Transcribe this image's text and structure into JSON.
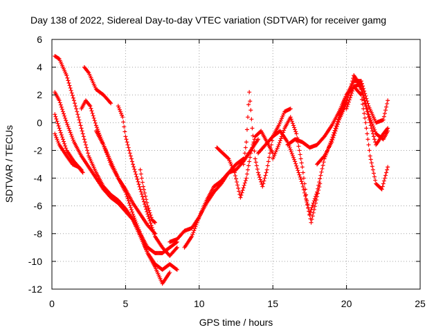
{
  "chart_data": {
    "type": "scatter",
    "title": "Day 138 of 2022, Sidereal Day-to-day VTEC variation (SDTVAR) for receiver gamg",
    "xlabel": "GPS time / hours",
    "ylabel": "SDTVAR / TECUs",
    "xlim": [
      0,
      25
    ],
    "ylim": [
      -12,
      6
    ],
    "xticks": [
      "0",
      "5",
      "10",
      "15",
      "20",
      "25"
    ],
    "yticks": [
      "6",
      "4",
      "2",
      "0",
      "-2",
      "-4",
      "-6",
      "-8",
      "-10",
      "-12"
    ],
    "grid": true,
    "marker": "plus",
    "color": "#ff0000",
    "series": [
      {
        "x": [
          0.2,
          0.5,
          1.0,
          1.5,
          2.0,
          2.5,
          3.0,
          3.5,
          4.0,
          4.5,
          5.0,
          5.5,
          6.0,
          6.5,
          7.0,
          7.5,
          8.0,
          8.5
        ],
        "y": [
          4.8,
          4.6,
          3.4,
          1.6,
          -0.4,
          -2.4,
          -3.6,
          -4.6,
          -5.2,
          -5.6,
          -6.2,
          -7.0,
          -8.0,
          -9.0,
          -9.4,
          -9.4,
          -9.0,
          -8.6
        ]
      },
      {
        "x": [
          0.2,
          0.5,
          1.0,
          1.5,
          2.0,
          2.5,
          3.0,
          3.5,
          4.0,
          4.5,
          5.0,
          5.5,
          6.0,
          6.5,
          7.0,
          7.5,
          8.0
        ],
        "y": [
          2.2,
          1.6,
          0.0,
          -1.4,
          -2.4,
          -3.2,
          -4.0,
          -4.8,
          -5.4,
          -5.8,
          -6.4,
          -7.0,
          -8.2,
          -9.4,
          -10.4,
          -11.6,
          -10.8
        ]
      },
      {
        "x": [
          0.2,
          0.5,
          1.0,
          1.5,
          2.0
        ],
        "y": [
          0.6,
          -0.4,
          -2.0,
          -2.8,
          -3.4
        ]
      },
      {
        "x": [
          0.2,
          0.5,
          1.0,
          1.4,
          1.8,
          2.1
        ],
        "y": [
          -0.8,
          -1.6,
          -2.4,
          -3.0,
          -3.2,
          -3.6
        ]
      },
      {
        "x": [
          2.2,
          2.5,
          3.0,
          3.5,
          4.0
        ],
        "y": [
          4.0,
          3.6,
          2.4,
          2.0,
          1.4
        ]
      },
      {
        "x": [
          2.0,
          2.3,
          2.6,
          3.0,
          3.5,
          4.0,
          4.5,
          5.0,
          5.5,
          6.0,
          6.5,
          7.0
        ],
        "y": [
          1.0,
          1.6,
          1.2,
          -0.2,
          -1.6,
          -2.8,
          -4.0,
          -4.8,
          -5.8,
          -6.6,
          -7.4,
          -8.0
        ]
      },
      {
        "x": [
          3.0,
          3.5,
          4.0,
          4.5,
          5.0,
          5.5,
          6.0,
          6.5,
          7.0,
          7.5,
          8.0,
          8.5
        ],
        "y": [
          -0.6,
          -1.6,
          -3.0,
          -4.0,
          -5.0,
          -6.6,
          -8.0,
          -9.4,
          -10.2,
          -10.6,
          -10.2,
          -10.6
        ]
      },
      {
        "x": [
          4.5,
          4.8,
          5.0,
          5.5,
          6.0,
          6.5,
          7.0,
          7.5,
          8.0,
          8.5
        ],
        "y": [
          1.2,
          0.4,
          -1.0,
          -3.0,
          -4.8,
          -6.6,
          -8.2,
          -9.0,
          -9.6,
          -9.0
        ]
      },
      {
        "x": [
          6.0,
          6.2,
          6.5,
          6.8,
          7.0
        ],
        "y": [
          -3.4,
          -4.6,
          -6.0,
          -7.0,
          -7.2
        ]
      },
      {
        "x": [
          8.0,
          8.5,
          9.0,
          9.5,
          10.0,
          10.5,
          11.0,
          11.5,
          12.0,
          12.5,
          13.0
        ],
        "y": [
          -8.6,
          -8.4,
          -7.8,
          -7.6,
          -6.8,
          -5.8,
          -5.0,
          -4.4,
          -3.6,
          -3.0,
          -2.6
        ]
      },
      {
        "x": [
          9.0,
          9.5,
          10.0,
          10.5,
          11.0,
          11.5,
          12.0,
          12.5,
          13.0,
          13.5,
          14.0
        ],
        "y": [
          -9.0,
          -8.2,
          -6.8,
          -5.6,
          -4.6,
          -4.2,
          -3.6,
          -3.4,
          -2.8,
          -2.0,
          -1.2
        ]
      },
      {
        "x": [
          11.2,
          11.6,
          12.0,
          12.4,
          12.8,
          13.2,
          13.5,
          13.8,
          14.2,
          14.6,
          15.0
        ],
        "y": [
          -1.8,
          -2.2,
          -2.6,
          -3.6,
          -5.4,
          -4.0,
          -2.2,
          -1.0,
          -0.6,
          -1.4,
          -2.2
        ]
      },
      {
        "x": [
          13.0,
          13.2,
          13.4,
          13.6,
          13.8,
          14.0,
          14.3,
          14.6,
          15.0,
          15.4,
          15.8,
          16.2
        ],
        "y": [
          -3.0,
          -1.4,
          2.2,
          -0.4,
          -2.6,
          -3.6,
          -4.6,
          -3.4,
          -1.0,
          -0.2,
          0.8,
          1.0
        ]
      },
      {
        "x": [
          14.0,
          14.5,
          15.0,
          15.5,
          16.0,
          16.5,
          17.0,
          17.5,
          18.0,
          18.5,
          19.0,
          19.5,
          20.0
        ],
        "y": [
          -2.2,
          -1.6,
          -1.0,
          -0.6,
          -1.4,
          -2.8,
          -4.4,
          -6.6,
          -5.0,
          -2.6,
          -1.2,
          0.4,
          1.6
        ]
      },
      {
        "x": [
          15.0,
          15.4,
          15.8,
          16.2,
          16.6,
          17.0,
          17.3,
          17.6,
          17.9,
          18.2
        ],
        "y": [
          -2.6,
          -1.6,
          -0.4,
          0.4,
          -0.8,
          -3.2,
          -5.6,
          -7.2,
          -5.8,
          -4.4
        ]
      },
      {
        "x": [
          16.0,
          16.5,
          17.0,
          17.5,
          18.0,
          18.5,
          19.0,
          19.5,
          20.0,
          20.5,
          21.0
        ],
        "y": [
          -1.6,
          -1.2,
          -1.4,
          -1.8,
          -1.6,
          -1.0,
          -0.2,
          0.8,
          2.0,
          2.6,
          2.8
        ]
      },
      {
        "x": [
          18.0,
          18.5,
          19.0,
          19.5,
          20.0,
          20.5,
          21.0,
          21.5,
          22.0,
          22.5,
          22.8
        ],
        "y": [
          -3.0,
          -2.4,
          -1.4,
          0.2,
          1.4,
          3.4,
          2.6,
          0.6,
          -0.8,
          -1.2,
          -0.6
        ]
      },
      {
        "x": [
          19.5,
          20.0,
          20.5,
          21.0,
          21.5,
          22.0,
          22.5,
          22.8
        ],
        "y": [
          0.6,
          2.0,
          3.0,
          3.0,
          1.2,
          0.0,
          0.2,
          1.6
        ]
      },
      {
        "x": [
          20.0,
          20.5,
          21.0,
          21.3,
          21.6,
          22.0,
          22.4,
          22.8
        ],
        "y": [
          1.0,
          2.6,
          2.0,
          0.0,
          -2.4,
          -4.4,
          -4.8,
          -3.2
        ]
      },
      {
        "x": [
          20.5,
          21.0,
          21.5,
          22.0,
          22.5,
          22.8
        ],
        "y": [
          3.4,
          2.4,
          0.4,
          -1.6,
          -0.8,
          -0.4
        ]
      }
    ]
  }
}
